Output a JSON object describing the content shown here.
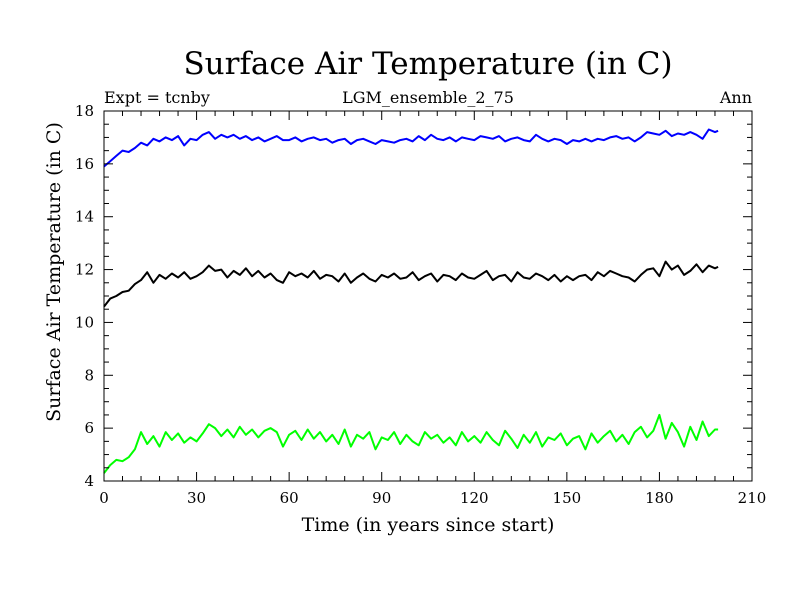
{
  "chart_data": {
    "type": "line",
    "title": "Surface Air Temperature (in C)",
    "subtitle_left": "Expt = tcnby",
    "subtitle_center": "LGM_ensemble_2_75",
    "subtitle_right": "Ann",
    "xlabel": "Time (in years since start)",
    "ylabel": "Surface Air Temperature (in C)",
    "xlim": [
      0,
      210
    ],
    "ylim": [
      4,
      18
    ],
    "xticks": [
      0,
      30,
      60,
      90,
      120,
      150,
      180,
      210
    ],
    "yticks": [
      4,
      6,
      8,
      10,
      12,
      14,
      16,
      18
    ],
    "grid": false,
    "series": [
      {
        "name": "blue",
        "color": "#0000ff",
        "x": [
          0,
          2,
          4,
          6,
          8,
          10,
          12,
          14,
          16,
          18,
          20,
          22,
          24,
          26,
          28,
          30,
          32,
          34,
          36,
          38,
          40,
          42,
          44,
          46,
          48,
          50,
          52,
          54,
          56,
          58,
          60,
          62,
          64,
          66,
          68,
          70,
          72,
          74,
          76,
          78,
          80,
          82,
          84,
          86,
          88,
          90,
          92,
          94,
          96,
          98,
          100,
          102,
          104,
          106,
          108,
          110,
          112,
          114,
          116,
          118,
          120,
          122,
          124,
          126,
          128,
          130,
          132,
          134,
          136,
          138,
          140,
          142,
          144,
          146,
          148,
          150,
          152,
          154,
          156,
          158,
          160,
          162,
          164,
          166,
          168,
          170,
          172,
          174,
          176,
          178,
          180,
          182,
          184,
          186,
          188,
          190,
          192,
          194,
          196,
          198,
          199
        ],
        "values": [
          15.9,
          16.1,
          16.3,
          16.5,
          16.45,
          16.6,
          16.8,
          16.7,
          16.95,
          16.85,
          17.0,
          16.9,
          17.05,
          16.7,
          16.95,
          16.9,
          17.1,
          17.2,
          16.95,
          17.1,
          17.0,
          17.1,
          16.95,
          17.05,
          16.9,
          17.0,
          16.85,
          16.95,
          17.05,
          16.9,
          16.9,
          17.0,
          16.85,
          16.95,
          17.0,
          16.9,
          16.95,
          16.8,
          16.9,
          16.95,
          16.75,
          16.9,
          16.95,
          16.85,
          16.75,
          16.9,
          16.85,
          16.8,
          16.9,
          16.95,
          16.85,
          17.05,
          16.9,
          17.1,
          16.95,
          16.9,
          17.0,
          16.85,
          17.0,
          16.95,
          16.9,
          17.05,
          17.0,
          16.95,
          17.05,
          16.85,
          16.95,
          17.0,
          16.9,
          16.85,
          17.1,
          16.95,
          16.85,
          16.95,
          16.9,
          16.75,
          16.9,
          16.85,
          16.95,
          16.85,
          16.95,
          16.9,
          17.0,
          17.05,
          16.95,
          17.0,
          16.85,
          17.0,
          17.2,
          17.15,
          17.1,
          17.25,
          17.05,
          17.15,
          17.1,
          17.2,
          17.1,
          16.95,
          17.3,
          17.2,
          17.25
        ]
      },
      {
        "name": "black",
        "color": "#000000",
        "x": [
          0,
          2,
          4,
          6,
          8,
          10,
          12,
          14,
          16,
          18,
          20,
          22,
          24,
          26,
          28,
          30,
          32,
          34,
          36,
          38,
          40,
          42,
          44,
          46,
          48,
          50,
          52,
          54,
          56,
          58,
          60,
          62,
          64,
          66,
          68,
          70,
          72,
          74,
          76,
          78,
          80,
          82,
          84,
          86,
          88,
          90,
          92,
          94,
          96,
          98,
          100,
          102,
          104,
          106,
          108,
          110,
          112,
          114,
          116,
          118,
          120,
          122,
          124,
          126,
          128,
          130,
          132,
          134,
          136,
          138,
          140,
          142,
          144,
          146,
          148,
          150,
          152,
          154,
          156,
          158,
          160,
          162,
          164,
          166,
          168,
          170,
          172,
          174,
          176,
          178,
          180,
          182,
          184,
          186,
          188,
          190,
          192,
          194,
          196,
          198,
          199
        ],
        "values": [
          10.6,
          10.9,
          11.0,
          11.15,
          11.2,
          11.45,
          11.6,
          11.9,
          11.5,
          11.8,
          11.65,
          11.85,
          11.7,
          11.9,
          11.65,
          11.75,
          11.9,
          12.15,
          11.95,
          12.0,
          11.7,
          11.95,
          11.8,
          12.05,
          11.75,
          11.95,
          11.7,
          11.85,
          11.6,
          11.5,
          11.9,
          11.75,
          11.85,
          11.7,
          11.95,
          11.65,
          11.8,
          11.75,
          11.55,
          11.85,
          11.5,
          11.7,
          11.85,
          11.65,
          11.55,
          11.8,
          11.7,
          11.85,
          11.65,
          11.7,
          11.9,
          11.6,
          11.75,
          11.85,
          11.55,
          11.8,
          11.75,
          11.6,
          11.85,
          11.7,
          11.65,
          11.8,
          11.95,
          11.6,
          11.75,
          11.8,
          11.55,
          11.9,
          11.7,
          11.65,
          11.85,
          11.75,
          11.6,
          11.8,
          11.55,
          11.75,
          11.6,
          11.75,
          11.8,
          11.6,
          11.9,
          11.75,
          11.95,
          11.85,
          11.75,
          11.7,
          11.55,
          11.8,
          12.0,
          12.05,
          11.75,
          12.3,
          12.0,
          12.15,
          11.8,
          11.95,
          12.2,
          11.9,
          12.15,
          12.05,
          12.1
        ]
      },
      {
        "name": "green",
        "color": "#00ff00",
        "x": [
          0,
          2,
          4,
          6,
          8,
          10,
          12,
          14,
          16,
          18,
          20,
          22,
          24,
          26,
          28,
          30,
          32,
          34,
          36,
          38,
          40,
          42,
          44,
          46,
          48,
          50,
          52,
          54,
          56,
          58,
          60,
          62,
          64,
          66,
          68,
          70,
          72,
          74,
          76,
          78,
          80,
          82,
          84,
          86,
          88,
          90,
          92,
          94,
          96,
          98,
          100,
          102,
          104,
          106,
          108,
          110,
          112,
          114,
          116,
          118,
          120,
          122,
          124,
          126,
          128,
          130,
          132,
          134,
          136,
          138,
          140,
          142,
          144,
          146,
          148,
          150,
          152,
          154,
          156,
          158,
          160,
          162,
          164,
          166,
          168,
          170,
          172,
          174,
          176,
          178,
          180,
          182,
          184,
          186,
          188,
          190,
          192,
          194,
          196,
          198,
          199
        ],
        "values": [
          4.3,
          4.6,
          4.8,
          4.75,
          4.9,
          5.2,
          5.85,
          5.4,
          5.7,
          5.3,
          5.85,
          5.55,
          5.8,
          5.45,
          5.65,
          5.5,
          5.8,
          6.15,
          6.0,
          5.7,
          5.95,
          5.65,
          6.05,
          5.75,
          5.95,
          5.65,
          5.9,
          6.0,
          5.85,
          5.3,
          5.75,
          5.9,
          5.55,
          5.95,
          5.6,
          5.85,
          5.5,
          5.75,
          5.4,
          5.95,
          5.3,
          5.75,
          5.6,
          5.85,
          5.2,
          5.65,
          5.55,
          5.85,
          5.4,
          5.75,
          5.5,
          5.35,
          5.85,
          5.6,
          5.75,
          5.45,
          5.65,
          5.35,
          5.85,
          5.5,
          5.7,
          5.45,
          5.85,
          5.55,
          5.35,
          5.9,
          5.6,
          5.25,
          5.75,
          5.45,
          5.85,
          5.3,
          5.65,
          5.55,
          5.8,
          5.35,
          5.6,
          5.7,
          5.2,
          5.8,
          5.45,
          5.7,
          5.9,
          5.5,
          5.75,
          5.4,
          5.85,
          6.05,
          5.65,
          5.9,
          6.5,
          5.6,
          6.2,
          5.85,
          5.3,
          6.05,
          5.55,
          6.25,
          5.7,
          5.95,
          5.95
        ]
      }
    ]
  }
}
